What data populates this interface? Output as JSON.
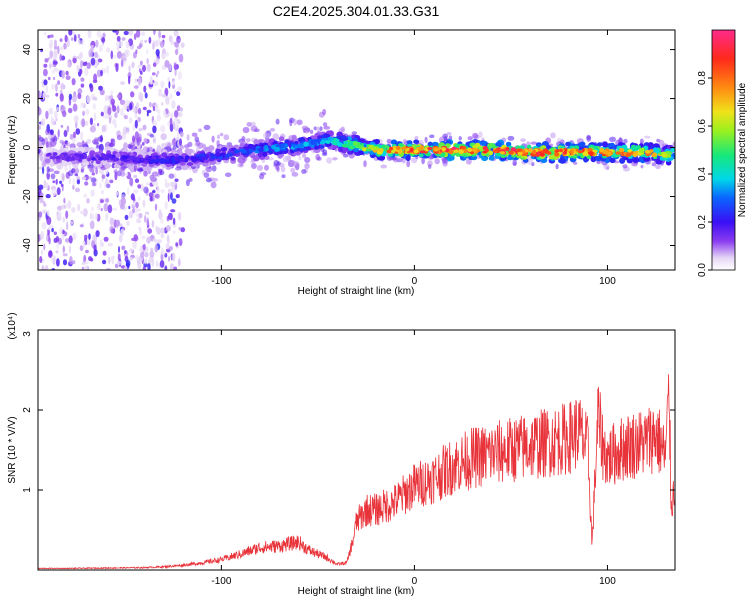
{
  "title": "C2E4.2025.304.01.33.G31",
  "colors": {
    "signal": "#e8333a",
    "colormap": [
      "#ffffff",
      "#e6d7f5",
      "#c9a9ef",
      "#8a3cf0",
      "#3a0ff5",
      "#0a64ff",
      "#00d8e8",
      "#18e878",
      "#9bf01e",
      "#f0e21a",
      "#ff8a12",
      "#ff2a1a",
      "#ff2a8a"
    ]
  },
  "chart_data": [
    {
      "name": "spectrogram",
      "type": "heatmap",
      "title": "C2E4.2025.304.01.33.G31",
      "xlabel": "Height of straight line (km)",
      "ylabel": "Frequency (Hz)",
      "xlim": [
        -195,
        135
      ],
      "ylim": [
        -50,
        48
      ],
      "xticks": [
        -100,
        0,
        100
      ],
      "xtick_labels": [
        "-100",
        "0",
        "100"
      ],
      "yticks": [
        40,
        20,
        0,
        -20,
        -40
      ],
      "ytick_labels": [
        "40",
        "20",
        "0",
        "-20",
        "-40"
      ],
      "colorbar": {
        "label": "Normalized spectral amplitude",
        "range": [
          0,
          1
        ],
        "ticks": [
          0.0,
          0.2,
          0.4,
          0.6,
          0.8
        ],
        "tick_labels": [
          "0.0",
          "0.2",
          "0.4",
          "0.6",
          "0.8"
        ]
      },
      "ridge": {
        "description": "dominant frequency track",
        "x": [
          -195,
          -180,
          -160,
          -140,
          -120,
          -100,
          -80,
          -60,
          -50,
          -45,
          -40,
          -30,
          -25,
          -20,
          -10,
          0,
          20,
          40,
          60,
          80,
          100,
          120,
          135
        ],
        "y": [
          -3,
          -4,
          -4,
          -5,
          -5,
          -3,
          -1,
          1,
          2,
          3,
          2,
          1,
          0,
          -1,
          -1,
          -1,
          -1,
          -1,
          -2,
          -2,
          -2,
          -2,
          -3
        ],
        "amplitude": [
          0.15,
          0.15,
          0.18,
          0.2,
          0.22,
          0.25,
          0.3,
          0.35,
          0.35,
          0.4,
          0.45,
          0.55,
          0.6,
          0.7,
          0.8,
          0.85,
          0.9,
          0.9,
          0.85,
          0.85,
          0.8,
          0.75,
          0.55
        ]
      }
    },
    {
      "name": "snr",
      "type": "line",
      "xlabel": "Height of straight line (km)",
      "ylabel": "SNR (10 * V/V)",
      "y_multiplier_label": "(x10⁴)",
      "xlim": [
        -195,
        135
      ],
      "ylim": [
        0,
        30000
      ],
      "xticks": [
        -100,
        0,
        100
      ],
      "xtick_labels": [
        "-100",
        "0",
        "100"
      ],
      "yticks": [
        10000,
        20000,
        30000
      ],
      "ytick_labels": [
        "1",
        "2",
        "3"
      ],
      "series": [
        {
          "name": "SNR",
          "x": [
            -195,
            -180,
            -160,
            -140,
            -130,
            -120,
            -110,
            -100,
            -90,
            -80,
            -70,
            -60,
            -55,
            -50,
            -45,
            -40,
            -35,
            -32,
            -30,
            -25,
            -20,
            -15,
            -10,
            -5,
            0,
            10,
            20,
            30,
            40,
            50,
            60,
            70,
            80,
            85,
            90,
            92,
            95,
            98,
            100,
            110,
            120,
            125,
            128,
            130,
            132,
            133,
            135
          ],
          "values": [
            200,
            200,
            250,
            300,
            400,
            600,
            900,
            1300,
            2000,
            2800,
            3000,
            3500,
            2500,
            2000,
            1500,
            700,
            900,
            3500,
            6000,
            7500,
            7500,
            8000,
            8500,
            9500,
            10500,
            11500,
            13000,
            14000,
            14500,
            15000,
            15500,
            16000,
            16500,
            17500,
            15000,
            3000,
            19000,
            15000,
            14000,
            15500,
            16000,
            17000,
            15500,
            14000,
            22000,
            8000,
            10500
          ]
        }
      ]
    }
  ]
}
